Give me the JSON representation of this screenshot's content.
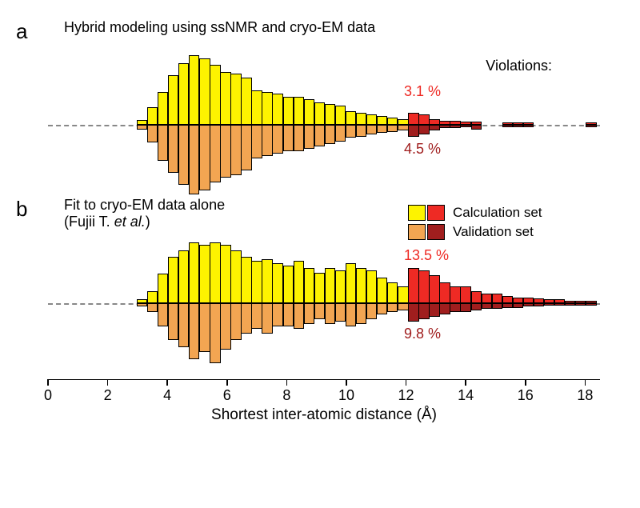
{
  "colors": {
    "yellow": "#fdf300",
    "orange": "#f2a552",
    "red": "#ee2a24",
    "darkred": "#a01e1e",
    "pct_top": "#ee2a24",
    "pct_bottom": "#a01e1e"
  },
  "x_axis": {
    "min": 0,
    "max": 18.5,
    "ticks": [
      0,
      2,
      4,
      6,
      8,
      10,
      12,
      14,
      16,
      18
    ],
    "title": "Shortest inter-atomic distance (Å)"
  },
  "bar_halfwidth": 0.18,
  "violation_threshold": 12,
  "panel_a": {
    "label": "a",
    "title": "Hybrid modeling using ssNMR and cryo-EM data",
    "violations_text": "Violations:",
    "pct_top": "3.1 %",
    "pct_bottom": "4.5 %",
    "max_up": 85,
    "max_down": 60,
    "bars_up": [
      {
        "x": 3.15,
        "v": 5
      },
      {
        "x": 3.5,
        "v": 20
      },
      {
        "x": 3.85,
        "v": 38
      },
      {
        "x": 4.2,
        "v": 58
      },
      {
        "x": 4.55,
        "v": 72
      },
      {
        "x": 4.9,
        "v": 82
      },
      {
        "x": 5.25,
        "v": 78
      },
      {
        "x": 5.6,
        "v": 70
      },
      {
        "x": 5.95,
        "v": 62
      },
      {
        "x": 6.3,
        "v": 60
      },
      {
        "x": 6.65,
        "v": 55
      },
      {
        "x": 7.0,
        "v": 40
      },
      {
        "x": 7.35,
        "v": 38
      },
      {
        "x": 7.7,
        "v": 36
      },
      {
        "x": 8.05,
        "v": 33
      },
      {
        "x": 8.4,
        "v": 33
      },
      {
        "x": 8.75,
        "v": 30
      },
      {
        "x": 9.1,
        "v": 26
      },
      {
        "x": 9.45,
        "v": 24
      },
      {
        "x": 9.8,
        "v": 22
      },
      {
        "x": 10.15,
        "v": 16
      },
      {
        "x": 10.5,
        "v": 14
      },
      {
        "x": 10.85,
        "v": 12
      },
      {
        "x": 11.2,
        "v": 10
      },
      {
        "x": 11.55,
        "v": 8
      },
      {
        "x": 11.9,
        "v": 6
      },
      {
        "x": 12.25,
        "v": 14,
        "viol": true
      },
      {
        "x": 12.6,
        "v": 12,
        "viol": true
      },
      {
        "x": 12.95,
        "v": 6,
        "viol": true
      },
      {
        "x": 13.3,
        "v": 4,
        "viol": true
      },
      {
        "x": 13.65,
        "v": 4,
        "viol": true
      },
      {
        "x": 14.0,
        "v": 3,
        "viol": true
      },
      {
        "x": 14.35,
        "v": 3,
        "viol": true
      },
      {
        "x": 15.4,
        "v": 2,
        "viol": true
      },
      {
        "x": 15.75,
        "v": 2,
        "viol": true
      },
      {
        "x": 16.1,
        "v": 2,
        "viol": true
      },
      {
        "x": 18.2,
        "v": 2,
        "viol": true
      }
    ],
    "bars_down": [
      {
        "x": 3.15,
        "v": 4
      },
      {
        "x": 3.5,
        "v": 15
      },
      {
        "x": 3.85,
        "v": 30
      },
      {
        "x": 4.2,
        "v": 40
      },
      {
        "x": 4.55,
        "v": 50
      },
      {
        "x": 4.9,
        "v": 58
      },
      {
        "x": 5.25,
        "v": 55
      },
      {
        "x": 5.6,
        "v": 48
      },
      {
        "x": 5.95,
        "v": 44
      },
      {
        "x": 6.3,
        "v": 42
      },
      {
        "x": 6.65,
        "v": 38
      },
      {
        "x": 7.0,
        "v": 28
      },
      {
        "x": 7.35,
        "v": 26
      },
      {
        "x": 7.7,
        "v": 24
      },
      {
        "x": 8.05,
        "v": 22
      },
      {
        "x": 8.4,
        "v": 22
      },
      {
        "x": 8.75,
        "v": 20
      },
      {
        "x": 9.1,
        "v": 18
      },
      {
        "x": 9.45,
        "v": 16
      },
      {
        "x": 9.8,
        "v": 14
      },
      {
        "x": 10.15,
        "v": 11
      },
      {
        "x": 10.5,
        "v": 10
      },
      {
        "x": 10.85,
        "v": 8
      },
      {
        "x": 11.2,
        "v": 7
      },
      {
        "x": 11.55,
        "v": 6
      },
      {
        "x": 11.9,
        "v": 5
      },
      {
        "x": 12.25,
        "v": 10,
        "viol": true
      },
      {
        "x": 12.6,
        "v": 8,
        "viol": true
      },
      {
        "x": 12.95,
        "v": 5,
        "viol": true
      },
      {
        "x": 13.3,
        "v": 3,
        "viol": true
      },
      {
        "x": 13.65,
        "v": 3,
        "viol": true
      },
      {
        "x": 14.0,
        "v": 2,
        "viol": true
      },
      {
        "x": 14.35,
        "v": 4,
        "viol": true
      },
      {
        "x": 15.4,
        "v": 2,
        "viol": true
      },
      {
        "x": 15.75,
        "v": 2,
        "viol": true
      },
      {
        "x": 16.1,
        "v": 2,
        "viol": true
      },
      {
        "x": 18.2,
        "v": 2,
        "viol": true
      }
    ]
  },
  "panel_b": {
    "label": "b",
    "title_line1": "Fit to cryo-EM data alone",
    "title_line2": "(Fujii T. et al.)",
    "pct_top": "13.5 %",
    "pct_bottom": "9.8 %",
    "max_up": 55,
    "max_down": 55,
    "bars_up": [
      {
        "x": 3.15,
        "v": 3
      },
      {
        "x": 3.5,
        "v": 10
      },
      {
        "x": 3.85,
        "v": 25
      },
      {
        "x": 4.2,
        "v": 40
      },
      {
        "x": 4.55,
        "v": 45
      },
      {
        "x": 4.9,
        "v": 52
      },
      {
        "x": 5.25,
        "v": 50
      },
      {
        "x": 5.6,
        "v": 52
      },
      {
        "x": 5.95,
        "v": 50
      },
      {
        "x": 6.3,
        "v": 45
      },
      {
        "x": 6.65,
        "v": 40
      },
      {
        "x": 7.0,
        "v": 36
      },
      {
        "x": 7.35,
        "v": 38
      },
      {
        "x": 7.7,
        "v": 34
      },
      {
        "x": 8.05,
        "v": 32
      },
      {
        "x": 8.4,
        "v": 36
      },
      {
        "x": 8.75,
        "v": 30
      },
      {
        "x": 9.1,
        "v": 26
      },
      {
        "x": 9.45,
        "v": 30
      },
      {
        "x": 9.8,
        "v": 28
      },
      {
        "x": 10.15,
        "v": 34
      },
      {
        "x": 10.5,
        "v": 30
      },
      {
        "x": 10.85,
        "v": 28
      },
      {
        "x": 11.2,
        "v": 22
      },
      {
        "x": 11.55,
        "v": 18
      },
      {
        "x": 11.9,
        "v": 14
      },
      {
        "x": 12.25,
        "v": 30,
        "viol": true
      },
      {
        "x": 12.6,
        "v": 28,
        "viol": true
      },
      {
        "x": 12.95,
        "v": 24,
        "viol": true
      },
      {
        "x": 13.3,
        "v": 18,
        "viol": true
      },
      {
        "x": 13.65,
        "v": 14,
        "viol": true
      },
      {
        "x": 14.0,
        "v": 14,
        "viol": true
      },
      {
        "x": 14.35,
        "v": 10,
        "viol": true
      },
      {
        "x": 14.7,
        "v": 8,
        "viol": true
      },
      {
        "x": 15.05,
        "v": 8,
        "viol": true
      },
      {
        "x": 15.4,
        "v": 6,
        "viol": true
      },
      {
        "x": 15.75,
        "v": 5,
        "viol": true
      },
      {
        "x": 16.1,
        "v": 5,
        "viol": true
      },
      {
        "x": 16.45,
        "v": 4,
        "viol": true
      },
      {
        "x": 16.8,
        "v": 3,
        "viol": true
      },
      {
        "x": 17.15,
        "v": 3,
        "viol": true
      },
      {
        "x": 17.5,
        "v": 2,
        "viol": true
      },
      {
        "x": 17.85,
        "v": 2,
        "viol": true
      },
      {
        "x": 18.2,
        "v": 2,
        "viol": true
      }
    ],
    "bars_down": [
      {
        "x": 3.15,
        "v": 3
      },
      {
        "x": 3.5,
        "v": 8
      },
      {
        "x": 3.85,
        "v": 20
      },
      {
        "x": 4.2,
        "v": 32
      },
      {
        "x": 4.55,
        "v": 38
      },
      {
        "x": 4.9,
        "v": 48
      },
      {
        "x": 5.25,
        "v": 42
      },
      {
        "x": 5.6,
        "v": 52
      },
      {
        "x": 5.95,
        "v": 40
      },
      {
        "x": 6.3,
        "v": 32
      },
      {
        "x": 6.65,
        "v": 26
      },
      {
        "x": 7.0,
        "v": 22
      },
      {
        "x": 7.35,
        "v": 26
      },
      {
        "x": 7.7,
        "v": 20
      },
      {
        "x": 8.05,
        "v": 20
      },
      {
        "x": 8.4,
        "v": 22
      },
      {
        "x": 8.75,
        "v": 18
      },
      {
        "x": 9.1,
        "v": 14
      },
      {
        "x": 9.45,
        "v": 18
      },
      {
        "x": 9.8,
        "v": 16
      },
      {
        "x": 10.15,
        "v": 20
      },
      {
        "x": 10.5,
        "v": 18
      },
      {
        "x": 10.85,
        "v": 14
      },
      {
        "x": 11.2,
        "v": 10
      },
      {
        "x": 11.55,
        "v": 8
      },
      {
        "x": 11.9,
        "v": 6
      },
      {
        "x": 12.25,
        "v": 16,
        "viol": true
      },
      {
        "x": 12.6,
        "v": 14,
        "viol": true
      },
      {
        "x": 12.95,
        "v": 12,
        "viol": true
      },
      {
        "x": 13.3,
        "v": 10,
        "viol": true
      },
      {
        "x": 13.65,
        "v": 8,
        "viol": true
      },
      {
        "x": 14.0,
        "v": 8,
        "viol": true
      },
      {
        "x": 14.35,
        "v": 6,
        "viol": true
      },
      {
        "x": 14.7,
        "v": 5,
        "viol": true
      },
      {
        "x": 15.05,
        "v": 5,
        "viol": true
      },
      {
        "x": 15.4,
        "v": 4,
        "viol": true
      },
      {
        "x": 15.75,
        "v": 4,
        "viol": true
      },
      {
        "x": 16.1,
        "v": 3,
        "viol": true
      },
      {
        "x": 16.45,
        "v": 3,
        "viol": true
      },
      {
        "x": 16.8,
        "v": 2,
        "viol": true
      },
      {
        "x": 17.15,
        "v": 2,
        "viol": true
      },
      {
        "x": 17.5,
        "v": 2,
        "viol": true
      },
      {
        "x": 17.85,
        "v": 2,
        "viol": true
      },
      {
        "x": 18.2,
        "v": 2,
        "viol": true
      }
    ]
  },
  "legend": {
    "calc": "Calculation set",
    "valid": "Validation set"
  }
}
